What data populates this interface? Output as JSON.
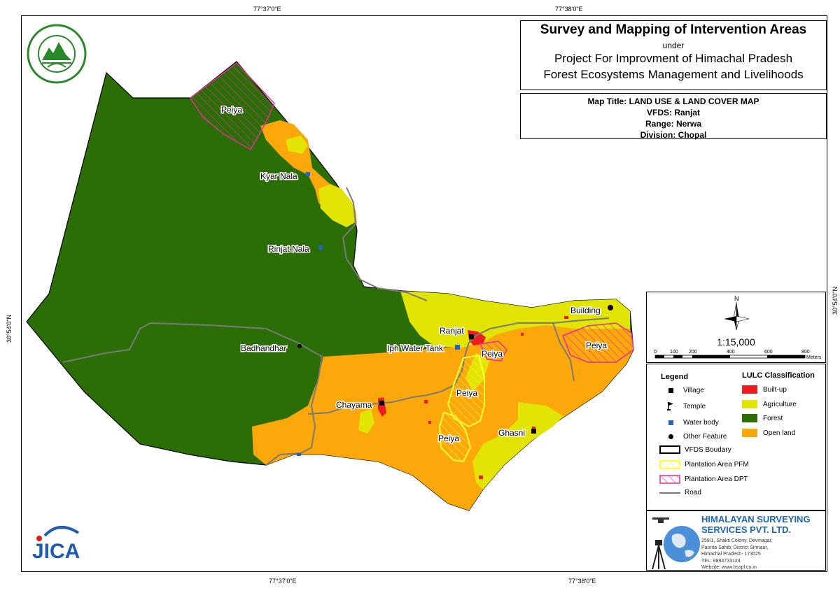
{
  "title": {
    "main": "Survey and Mapping of Intervention Areas",
    "under": "under",
    "project_line1": "Project For Improvment of Himachal Pradesh",
    "project_line2": "Forest Ecosystems Management and Livelihoods"
  },
  "map_info": {
    "map_title": "Map Title: LAND USE & LAND COVER MAP",
    "vfds": "VFDS: Ranjat",
    "range": "Range: Nerwa",
    "division": "Division: Chopal"
  },
  "coordinates": {
    "top_left": "77°37'0\"E",
    "top_right": "77°38'0\"E",
    "bottom_left": "77°37'0\"E",
    "bottom_right": "77°38'0\"E",
    "left": "30°54'0\"N",
    "right": "30°54'0\"N"
  },
  "scale": {
    "ratio": "1:15,000",
    "north_label": "N",
    "ticks": [
      "0",
      "100",
      "200",
      "400",
      "600",
      "800"
    ],
    "unit": "Meters"
  },
  "legend": {
    "heading": "Legend",
    "lulc_heading": "LULC Classification",
    "items": [
      "Village",
      "Temple",
      "Water body",
      "Other Feature",
      "VFDS Boudary",
      "Plantation Area PFM",
      "Plantation Area DPT",
      "Road"
    ],
    "lulc": [
      {
        "label": "Built-up",
        "color": "#ee1c1c"
      },
      {
        "label": "Agriculture",
        "color": "#e2e404"
      },
      {
        "label": "Forest",
        "color": "#2a6e05"
      },
      {
        "label": "Open land",
        "color": "#fca80b"
      }
    ]
  },
  "places": {
    "peiya_nw": "Peiya",
    "kyar_nala": "Kyar Nala",
    "rinjat_nala": "Rinjat Nala",
    "badhandhar": "Badhandhar",
    "ranjat": "Ranjat",
    "iph_water_tank": "Iph Water Tank",
    "peiya_center": "Peiya",
    "peiya_pfm1": "Peiya",
    "peiya_pfm2": "Peiya",
    "chayama": "Chayama",
    "ghasni": "Ghasni",
    "building": "Building",
    "peiya_east": "Peiya"
  },
  "company": {
    "name_line1": "HIMALAYAN SURVEYING",
    "name_line2": "SERVICES PVT. LTD.",
    "addr1": "259/1, Shakti Colony, Devinagar,",
    "addr2": "Paonta Sahib, District Sirmaur,",
    "addr3": "Himachal Pradesh- 173025",
    "tel": "TEL: 8894733124",
    "web": "Website: www.hsspl.co.in"
  },
  "jica_logo": "JICA",
  "colors": {
    "forest": "#2a6e05",
    "open_land": "#fca80b",
    "agriculture": "#e2e404",
    "builtup": "#ee1c1c",
    "road": "#7a7a7a",
    "pfm": "#ffff33",
    "dpt": "#e0309a",
    "water": "#1e64d2"
  }
}
